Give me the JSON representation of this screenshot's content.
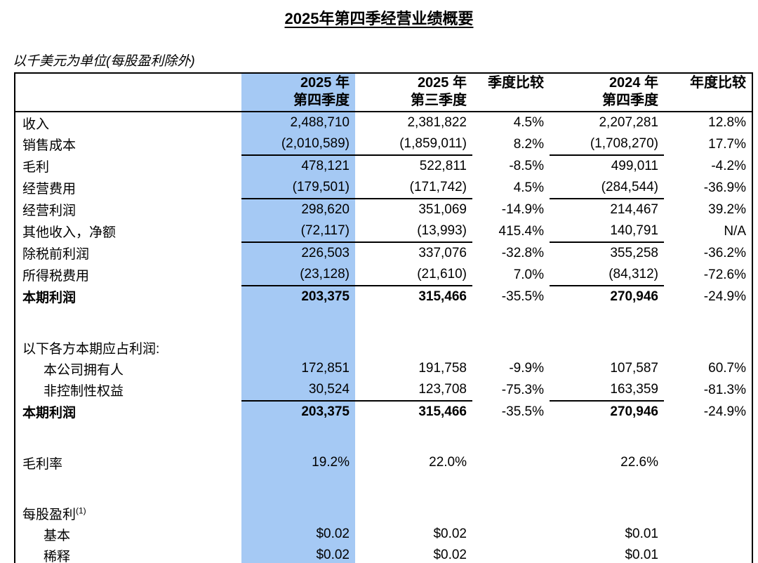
{
  "page": {
    "title": "2025年第四季经营业绩概要",
    "subtitle": "以千美元为单位(每股盈利除外)"
  },
  "colors": {
    "highlight": "#a5c9f4",
    "border": "#000000",
    "text": "#000000"
  },
  "table": {
    "columns": [
      {
        "id": "row-label",
        "lines": [],
        "highlight": false
      },
      {
        "id": "q4-2025",
        "lines": [
          "2025 年",
          "第四季度"
        ],
        "highlight": true
      },
      {
        "id": "q3-2025",
        "lines": [
          "2025 年",
          "第三季度"
        ],
        "highlight": false
      },
      {
        "id": "qoq-change",
        "lines": [
          "季度比较"
        ],
        "highlight": false
      },
      {
        "id": "q4-2024",
        "lines": [
          "2024 年",
          "第四季度"
        ],
        "highlight": false
      },
      {
        "id": "yoy-change",
        "lines": [
          "年度比较"
        ],
        "highlight": false
      }
    ],
    "rows": [
      {
        "label": "收入",
        "values": [
          "2,488,710",
          "2,381,822",
          "4.5%",
          "2,207,281",
          "12.8%"
        ]
      },
      {
        "label": "销售成本",
        "values": [
          "(2,010,589)",
          "(1,859,011)",
          "8.2%",
          "(1,708,270)",
          "17.7%"
        ],
        "underline": true
      },
      {
        "label": "毛利",
        "values": [
          "478,121",
          "522,811",
          "-8.5%",
          "499,011",
          "-4.2%"
        ]
      },
      {
        "label": "经营费用",
        "values": [
          "(179,501)",
          "(171,742)",
          "4.5%",
          "(284,544)",
          "-36.9%"
        ],
        "underline": true
      },
      {
        "label": "经营利润",
        "values": [
          "298,620",
          "351,069",
          "-14.9%",
          "214,467",
          "39.2%"
        ]
      },
      {
        "label": "其他收入，净额",
        "values": [
          "(72,117)",
          "(13,993)",
          "415.4%",
          "140,791",
          "N/A"
        ],
        "underline": true
      },
      {
        "label": "除税前利润",
        "values": [
          "226,503",
          "337,076",
          "-32.8%",
          "355,258",
          "-36.2%"
        ]
      },
      {
        "label": "所得税费用",
        "values": [
          "(23,128)",
          "(21,610)",
          "7.0%",
          "(84,312)",
          "-72.6%"
        ],
        "underline": true
      },
      {
        "label": "本期利润",
        "values": [
          "203,375",
          "315,466",
          "-35.5%",
          "270,946",
          "-24.9%"
        ],
        "bold": true
      },
      {
        "type": "spacer"
      },
      {
        "label": "以下各方本期应占利润:",
        "values": [
          "",
          "",
          "",
          "",
          ""
        ]
      },
      {
        "label": "本公司拥有人",
        "indent": true,
        "values": [
          "172,851",
          "191,758",
          "-9.9%",
          "107,587",
          "60.7%"
        ]
      },
      {
        "label": "非控制性权益",
        "indent": true,
        "values": [
          "30,524",
          "123,708",
          "-75.3%",
          "163,359",
          "-81.3%"
        ],
        "underline": true
      },
      {
        "label": "本期利润",
        "values": [
          "203,375",
          "315,466",
          "-35.5%",
          "270,946",
          "-24.9%"
        ],
        "bold": true
      },
      {
        "type": "spacer"
      },
      {
        "label": "毛利率",
        "values": [
          "19.2%",
          "22.0%",
          "",
          "22.6%",
          ""
        ]
      },
      {
        "type": "spacer"
      },
      {
        "label": "每股盈利",
        "sup": "(1)",
        "values": [
          "",
          "",
          "",
          "",
          ""
        ]
      },
      {
        "label": "基本",
        "indent": true,
        "values": [
          "$0.02",
          "$0.02",
          "",
          "$0.01",
          ""
        ]
      },
      {
        "label": "稀释",
        "indent": true,
        "values": [
          "$0.02",
          "$0.02",
          "",
          "$0.01",
          ""
        ]
      }
    ]
  }
}
